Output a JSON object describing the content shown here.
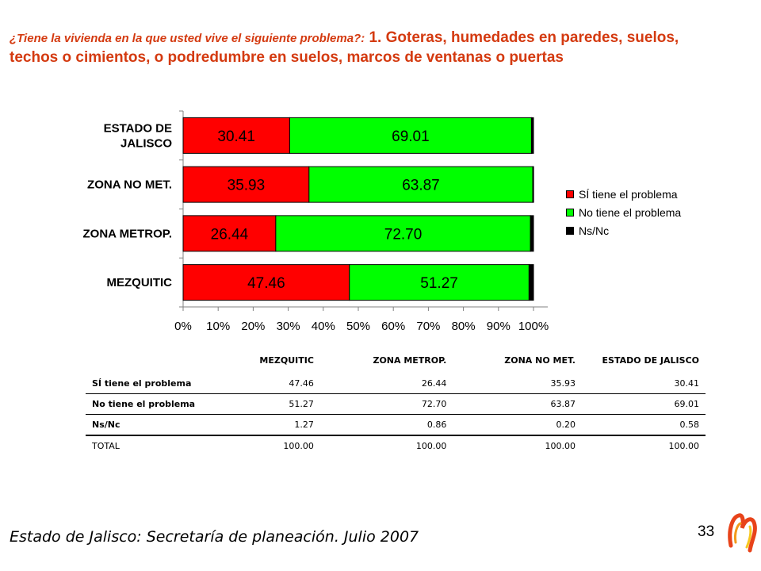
{
  "title": {
    "question": "¿Tiene la vivienda en la que usted vive el siguiente problema?:",
    "topic": "1. Goteras, humedades en paredes, suelos, techos o cimientos, o podredumbre en suelos, marcos de ventanas o puertas"
  },
  "colors": {
    "si": "#ff0000",
    "no": "#00ff00",
    "nsnc": "#000000",
    "title": "#d43a10"
  },
  "chart_data": {
    "type": "bar",
    "orientation": "horizontal",
    "stacked": "percent",
    "categories": [
      "ESTADO DE JALISCO",
      "ZONA NO MET.",
      "ZONA METROP.",
      "MEZQUITIC"
    ],
    "series": [
      {
        "name": "SÍ tiene el problema",
        "values": [
          30.41,
          35.93,
          26.44,
          47.46
        ],
        "color": "#ff0000"
      },
      {
        "name": "No tiene el problema",
        "values": [
          69.01,
          63.87,
          72.7,
          51.27
        ],
        "color": "#00ff00"
      },
      {
        "name": "Ns/Nc",
        "values": [
          0.58,
          0.2,
          0.86,
          1.27
        ],
        "color": "#000000"
      }
    ],
    "xlim": [
      0,
      100
    ],
    "xticks": [
      "0%",
      "10%",
      "20%",
      "30%",
      "40%",
      "50%",
      "60%",
      "70%",
      "80%",
      "90%",
      "100%"
    ],
    "data_labels": "series 1 and 2 only, 2 decimals",
    "legend_position": "right",
    "grid": false
  },
  "table": {
    "columns": [
      "MEZQUITIC",
      "ZONA METROP.",
      "ZONA NO MET.",
      "ESTADO DE JALISCO"
    ],
    "rows": [
      {
        "label": "SÍ tiene el problema",
        "values": [
          "47.46",
          "26.44",
          "35.93",
          "30.41"
        ]
      },
      {
        "label": "No tiene el problema",
        "values": [
          "51.27",
          "72.70",
          "63.87",
          "69.01"
        ]
      },
      {
        "label": "Ns/Nc",
        "values": [
          "1.27",
          "0.86",
          "0.20",
          "0.58"
        ]
      },
      {
        "label": "TOTAL",
        "values": [
          "100.00",
          "100.00",
          "100.00",
          "100.00"
        ]
      }
    ]
  },
  "footer": {
    "source": "Estado de Jalisco: Secretaría de planeación. Julio 2007",
    "page_number": "33"
  },
  "logo_icon": "institutional-logo-icon"
}
